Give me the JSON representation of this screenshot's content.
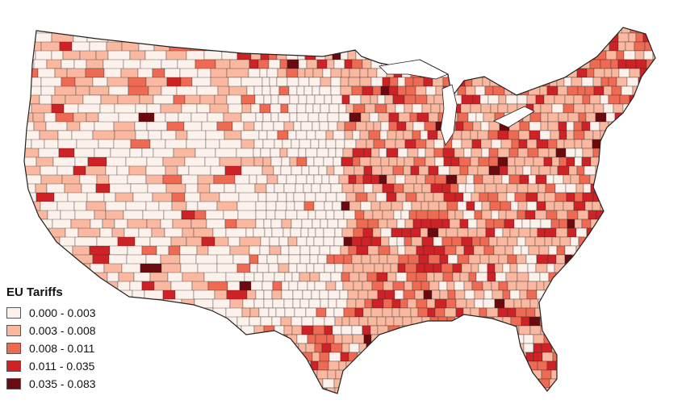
{
  "legend": {
    "title": "EU Tariffs",
    "classes": [
      {
        "label": "0.000 - 0.003",
        "color": "#fdf1ec"
      },
      {
        "label": "0.003 - 0.008",
        "color": "#f9b89f"
      },
      {
        "label": "0.008 - 0.011",
        "color": "#ef6a52"
      },
      {
        "label": "0.011 - 0.035",
        "color": "#cf2227"
      },
      {
        "label": "0.035 - 0.083",
        "color": "#6b0b10"
      }
    ]
  },
  "colors": {
    "county_border": "#2a2a2a",
    "background": "#ffffff"
  }
}
